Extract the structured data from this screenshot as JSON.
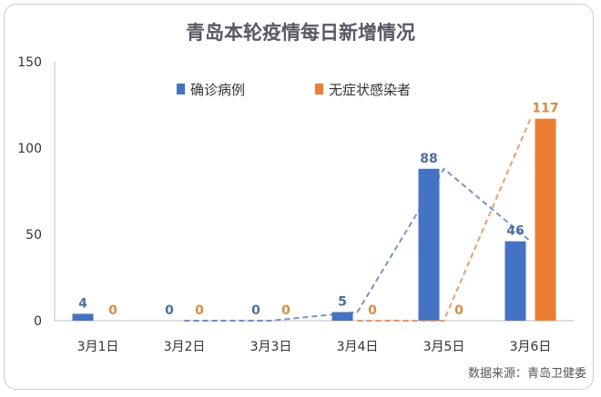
{
  "source": "数据来源：青岛卫健委",
  "colors": {
    "confirmed": "#4472c4",
    "asymptomatic": "#ed7d31",
    "confirmed_label": "#4a6fa5",
    "asymptomatic_label": "#e08a3c",
    "axis": "#bfbfbf"
  },
  "chart_data": {
    "type": "bar",
    "title": "青岛本轮疫情每日新增情况",
    "categories": [
      "3月1日",
      "3月2日",
      "3月3日",
      "3月4日",
      "3月5日",
      "3月6日"
    ],
    "ylim": [
      0,
      150
    ],
    "yticks": [
      "0",
      "50",
      "100",
      "150"
    ],
    "grid": false,
    "legend_position": "top-center",
    "trendline": "dashed, per series",
    "series": [
      {
        "name": "确诊病例",
        "values": [
          4,
          0,
          0,
          5,
          88,
          46
        ],
        "labels": [
          "4",
          "0",
          "0",
          "5",
          "88",
          "46"
        ]
      },
      {
        "name": "无症状感染者",
        "values": [
          0,
          0,
          0,
          0,
          0,
          117
        ],
        "labels": [
          "0",
          "0",
          "0",
          "0",
          "0",
          "117"
        ]
      }
    ]
  }
}
